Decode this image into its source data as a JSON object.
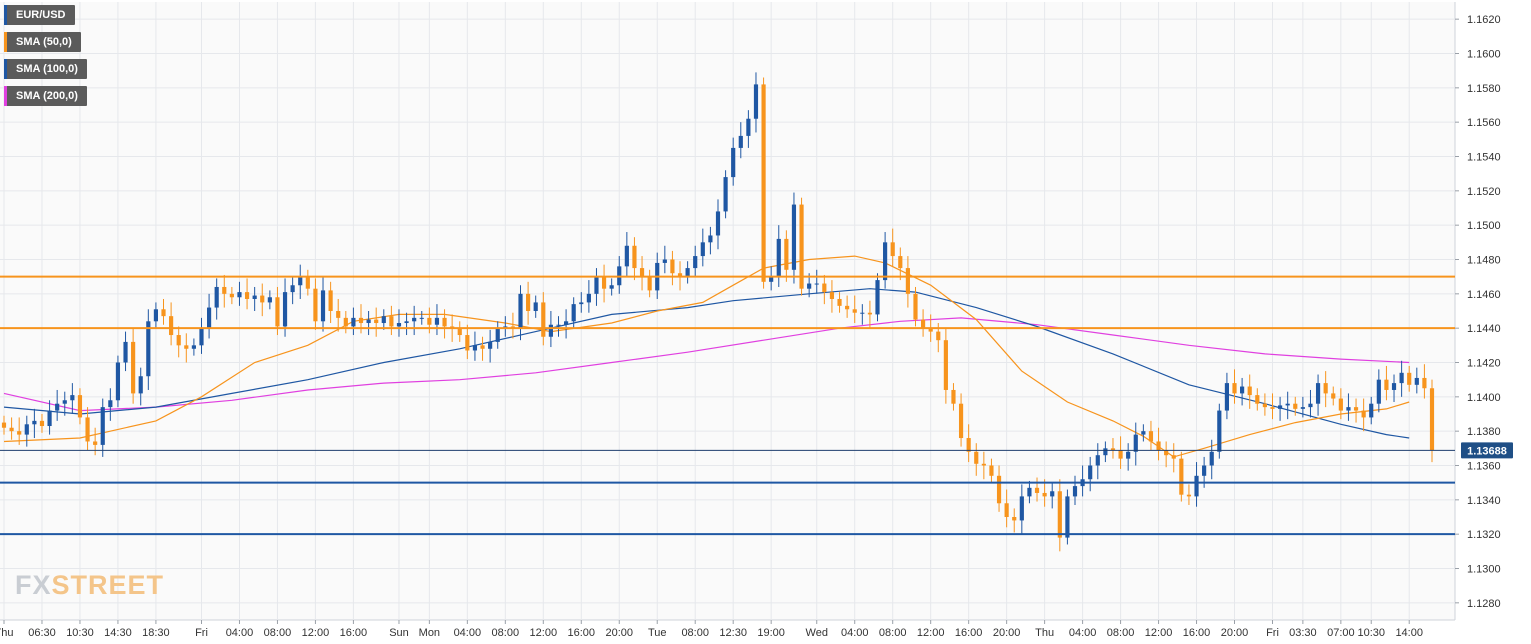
{
  "colors": {
    "bull": "#1f57a3",
    "bear": "#f7941d",
    "sma50": "#f7941d",
    "sma100": "#1f57a3",
    "sma200": "#e040e0",
    "resistance": "#f7941d",
    "support": "#1f57a3",
    "grid": "#e6e8ec",
    "plot_bg": "#fafafa",
    "price_badge": "#1f4f86"
  },
  "legend": [
    {
      "label": "EUR/USD",
      "color": "#1f57a3"
    },
    {
      "label": "SMA (50,0)",
      "color": "#f7941d"
    },
    {
      "label": "SMA (100,0)",
      "color": "#1f57a3"
    },
    {
      "label": "SMA (200,0)",
      "color": "#e040e0"
    }
  ],
  "logo": {
    "fx": "FX",
    "street": "STREET"
  },
  "chart_data": {
    "type": "candlestick",
    "symbol": "EUR/USD",
    "ylim": [
      1.127,
      1.163
    ],
    "y_ticks": [
      "1.1280",
      "1.1300",
      "1.1320",
      "1.1340",
      "1.1360",
      "1.1380",
      "1.1400",
      "1.1420",
      "1.1440",
      "1.1460",
      "1.1480",
      "1.1500",
      "1.1520",
      "1.1540",
      "1.1560",
      "1.1580",
      "1.1600",
      "1.1620"
    ],
    "x_ticks": [
      {
        "label": "Thu",
        "idx": 0
      },
      {
        "label": "06:30",
        "idx": 5
      },
      {
        "label": "10:30",
        "idx": 10
      },
      {
        "label": "14:30",
        "idx": 15
      },
      {
        "label": "18:30",
        "idx": 20
      },
      {
        "label": "Fri",
        "idx": 26
      },
      {
        "label": "04:00",
        "idx": 31
      },
      {
        "label": "08:00",
        "idx": 36
      },
      {
        "label": "12:00",
        "idx": 41
      },
      {
        "label": "16:00",
        "idx": 46
      },
      {
        "label": "Sun",
        "idx": 52
      },
      {
        "label": "Mon",
        "idx": 56
      },
      {
        "label": "04:00",
        "idx": 61
      },
      {
        "label": "08:00",
        "idx": 66
      },
      {
        "label": "12:00",
        "idx": 71
      },
      {
        "label": "16:00",
        "idx": 76
      },
      {
        "label": "20:00",
        "idx": 81
      },
      {
        "label": "Tue",
        "idx": 86
      },
      {
        "label": "08:00",
        "idx": 91
      },
      {
        "label": "12:30",
        "idx": 96
      },
      {
        "label": "19:00",
        "idx": 101
      },
      {
        "label": "Wed",
        "idx": 107
      },
      {
        "label": "04:00",
        "idx": 112
      },
      {
        "label": "08:00",
        "idx": 117
      },
      {
        "label": "12:00",
        "idx": 122
      },
      {
        "label": "16:00",
        "idx": 127
      },
      {
        "label": "20:00",
        "idx": 132
      },
      {
        "label": "Thu",
        "idx": 137
      },
      {
        "label": "04:00",
        "idx": 142
      },
      {
        "label": "08:00",
        "idx": 147
      },
      {
        "label": "12:00",
        "idx": 152
      },
      {
        "label": "16:00",
        "idx": 157
      },
      {
        "label": "20:00",
        "idx": 162
      },
      {
        "label": "Fri",
        "idx": 167
      },
      {
        "label": "03:30",
        "idx": 171
      },
      {
        "label": "07:00",
        "idx": 176
      },
      {
        "label": "10:30",
        "idx": 180
      },
      {
        "label": "14:00",
        "idx": 185
      }
    ],
    "closes": [
      1.1382,
      1.138,
      1.1378,
      1.1384,
      1.1386,
      1.1383,
      1.1392,
      1.1396,
      1.1398,
      1.1401,
      1.1388,
      1.1374,
      1.1372,
      1.1394,
      1.1398,
      1.142,
      1.1432,
      1.1402,
      1.1412,
      1.1444,
      1.1451,
      1.1447,
      1.1436,
      1.143,
      1.1428,
      1.143,
      1.144,
      1.1452,
      1.1464,
      1.146,
      1.1458,
      1.1461,
      1.1457,
      1.1459,
      1.1455,
      1.1458,
      1.1441,
      1.1461,
      1.1465,
      1.147,
      1.1463,
      1.1444,
      1.1462,
      1.145,
      1.1446,
      1.1441,
      1.1446,
      1.1443,
      1.1445,
      1.1443,
      1.1447,
      1.1441,
      1.1443,
      1.1444,
      1.1446,
      1.1446,
      1.1442,
      1.1446,
      1.1441,
      1.144,
      1.1436,
      1.1427,
      1.143,
      1.1428,
      1.1432,
      1.144,
      1.1441,
      1.144,
      1.146,
      1.145,
      1.1455,
      1.1435,
      1.1442,
      1.1442,
      1.1444,
      1.1454,
      1.1455,
      1.146,
      1.147,
      1.1463,
      1.1465,
      1.1476,
      1.1488,
      1.1475,
      1.147,
      1.1462,
      1.1478,
      1.148,
      1.1472,
      1.147,
      1.1475,
      1.1482,
      1.149,
      1.1494,
      1.1508,
      1.1528,
      1.1545,
      1.1552,
      1.1562,
      1.1582,
      1.1467,
      1.147,
      1.1492,
      1.1474,
      1.1512,
      1.1463,
      1.1466,
      1.1466,
      1.1461,
      1.1457,
      1.1453,
      1.1451,
      1.1449,
      1.1449,
      1.1448,
      1.1468,
      1.149,
      1.1482,
      1.1475,
      1.146,
      1.1445,
      1.144,
      1.1438,
      1.1433,
      1.1404,
      1.1396,
      1.1376,
      1.1368,
      1.1361,
      1.136,
      1.1354,
      1.1338,
      1.133,
      1.1328,
      1.1342,
      1.1347,
      1.1344,
      1.1342,
      1.1345,
      1.1318,
      1.1342,
      1.1348,
      1.1352,
      1.136,
      1.1366,
      1.137,
      1.1369,
      1.1364,
      1.1368,
      1.1378,
      1.138,
      1.1374,
      1.1369,
      1.1366,
      1.1364,
      1.1343,
      1.1342,
      1.1354,
      1.136,
      1.1368,
      1.1392,
      1.1408,
      1.1402,
      1.1406,
      1.1401,
      1.1396,
      1.1394,
      1.1393,
      1.1395,
      1.1396,
      1.1393,
      1.1394,
      1.1396,
      1.1408,
      1.1402,
      1.1399,
      1.1392,
      1.1394,
      1.1392,
      1.1388,
      1.1396,
      1.141,
      1.1404,
      1.1408,
      1.1414,
      1.1407,
      1.1411,
      1.1405,
      1.1369
    ],
    "sma50": [
      [
        0,
        1.1374
      ],
      [
        10,
        1.1376
      ],
      [
        20,
        1.1386
      ],
      [
        26,
        1.14
      ],
      [
        33,
        1.142
      ],
      [
        40,
        1.143
      ],
      [
        46,
        1.1444
      ],
      [
        52,
        1.1448
      ],
      [
        58,
        1.1448
      ],
      [
        66,
        1.1443
      ],
      [
        72,
        1.1438
      ],
      [
        80,
        1.1443
      ],
      [
        86,
        1.145
      ],
      [
        92,
        1.1455
      ],
      [
        96,
        1.1465
      ],
      [
        100,
        1.1475
      ],
      [
        106,
        1.148
      ],
      [
        112,
        1.1482
      ],
      [
        116,
        1.1478
      ],
      [
        122,
        1.1465
      ],
      [
        128,
        1.1445
      ],
      [
        134,
        1.1415
      ],
      [
        140,
        1.1397
      ],
      [
        146,
        1.1386
      ],
      [
        150,
        1.1377
      ],
      [
        154,
        1.1365
      ],
      [
        158,
        1.137
      ],
      [
        164,
        1.1378
      ],
      [
        170,
        1.1385
      ],
      [
        176,
        1.139
      ],
      [
        182,
        1.1393
      ],
      [
        185,
        1.1397
      ]
    ],
    "sma100": [
      [
        0,
        1.1394
      ],
      [
        10,
        1.139
      ],
      [
        20,
        1.1394
      ],
      [
        30,
        1.1402
      ],
      [
        40,
        1.141
      ],
      [
        50,
        1.142
      ],
      [
        60,
        1.1428
      ],
      [
        70,
        1.1438
      ],
      [
        80,
        1.1448
      ],
      [
        90,
        1.1452
      ],
      [
        96,
        1.1456
      ],
      [
        106,
        1.146
      ],
      [
        114,
        1.1463
      ],
      [
        120,
        1.1461
      ],
      [
        128,
        1.1452
      ],
      [
        136,
        1.1441
      ],
      [
        146,
        1.1425
      ],
      [
        156,
        1.1407
      ],
      [
        166,
        1.1396
      ],
      [
        176,
        1.1384
      ],
      [
        182,
        1.1378
      ],
      [
        185,
        1.1376
      ]
    ],
    "sma200": [
      [
        0,
        1.1402
      ],
      [
        10,
        1.1392
      ],
      [
        20,
        1.1394
      ],
      [
        30,
        1.1398
      ],
      [
        40,
        1.1404
      ],
      [
        50,
        1.1408
      ],
      [
        60,
        1.141
      ],
      [
        70,
        1.1414
      ],
      [
        80,
        1.142
      ],
      [
        90,
        1.1426
      ],
      [
        100,
        1.1433
      ],
      [
        110,
        1.144
      ],
      [
        118,
        1.1444
      ],
      [
        126,
        1.1446
      ],
      [
        136,
        1.1442
      ],
      [
        146,
        1.1436
      ],
      [
        156,
        1.143
      ],
      [
        166,
        1.1425
      ],
      [
        176,
        1.1422
      ],
      [
        185,
        1.142
      ]
    ],
    "horizontal_levels": [
      {
        "value": 1.147,
        "kind": "resistance"
      },
      {
        "value": 1.144,
        "kind": "resistance"
      },
      {
        "value": 1.135,
        "kind": "support"
      },
      {
        "value": 1.132,
        "kind": "support"
      }
    ],
    "last_price": {
      "value": 1.13688,
      "label": "1.13688"
    }
  }
}
